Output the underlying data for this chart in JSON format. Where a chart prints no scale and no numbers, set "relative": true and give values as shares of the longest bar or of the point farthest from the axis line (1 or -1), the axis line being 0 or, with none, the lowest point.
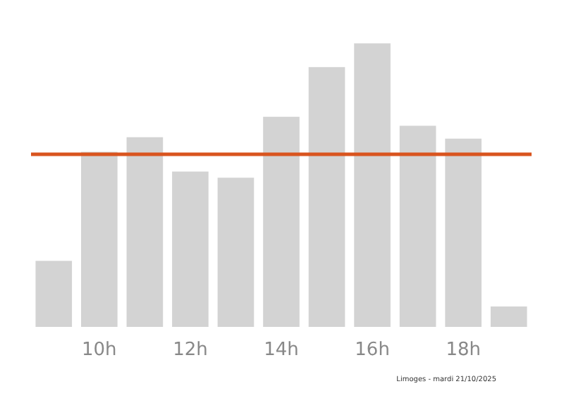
{
  "chart_data": {
    "type": "bar",
    "relative": true,
    "categories": [
      null,
      "10h",
      null,
      "12h",
      null,
      "14h",
      null,
      "16h",
      null,
      "18h",
      null
    ],
    "values": [
      0.233,
      0.617,
      0.669,
      0.548,
      0.526,
      0.741,
      0.916,
      1,
      0.709,
      0.664,
      0.072
    ],
    "color": "#d3d3d3",
    "ref_lines": [
      {
        "axis": "y",
        "value": 0.611,
        "color": "#d9541e"
      }
    ],
    "annotations": [
      "Limoges - mardi 21/10/2025"
    ],
    "grid": false
  }
}
